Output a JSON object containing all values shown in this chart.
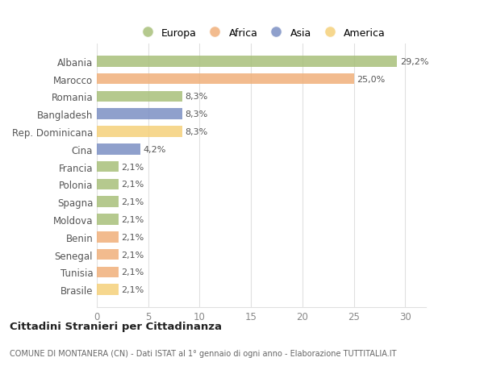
{
  "categories": [
    "Albania",
    "Marocco",
    "Romania",
    "Bangladesh",
    "Rep. Dominicana",
    "Cina",
    "Francia",
    "Polonia",
    "Spagna",
    "Moldova",
    "Benin",
    "Senegal",
    "Tunisia",
    "Brasile"
  ],
  "values": [
    29.2,
    25.0,
    8.3,
    8.3,
    8.3,
    4.2,
    2.1,
    2.1,
    2.1,
    2.1,
    2.1,
    2.1,
    2.1,
    2.1
  ],
  "labels": [
    "29,2%",
    "25,0%",
    "8,3%",
    "8,3%",
    "8,3%",
    "4,2%",
    "2,1%",
    "2,1%",
    "2,1%",
    "2,1%",
    "2,1%",
    "2,1%",
    "2,1%",
    "2,1%"
  ],
  "colors": [
    "#a8c07a",
    "#f0b07a",
    "#a8c07a",
    "#7b8fc4",
    "#f5d07a",
    "#7b8fc4",
    "#a8c07a",
    "#a8c07a",
    "#a8c07a",
    "#a8c07a",
    "#f0b07a",
    "#f0b07a",
    "#f0b07a",
    "#f5d07a"
  ],
  "legend_labels": [
    "Europa",
    "Africa",
    "Asia",
    "America"
  ],
  "legend_colors": [
    "#a8c07a",
    "#f0b07a",
    "#7b8fc4",
    "#f5d07a"
  ],
  "title": "Cittadini Stranieri per Cittadinanza",
  "subtitle": "COMUNE DI MONTANERA (CN) - Dati ISTAT al 1° gennaio di ogni anno - Elaborazione TUTTITALIA.IT",
  "xlim": [
    0,
    32
  ],
  "xticks": [
    0,
    5,
    10,
    15,
    20,
    25,
    30
  ],
  "background_color": "#ffffff",
  "grid_color": "#e0e0e0",
  "bar_height": 0.62
}
